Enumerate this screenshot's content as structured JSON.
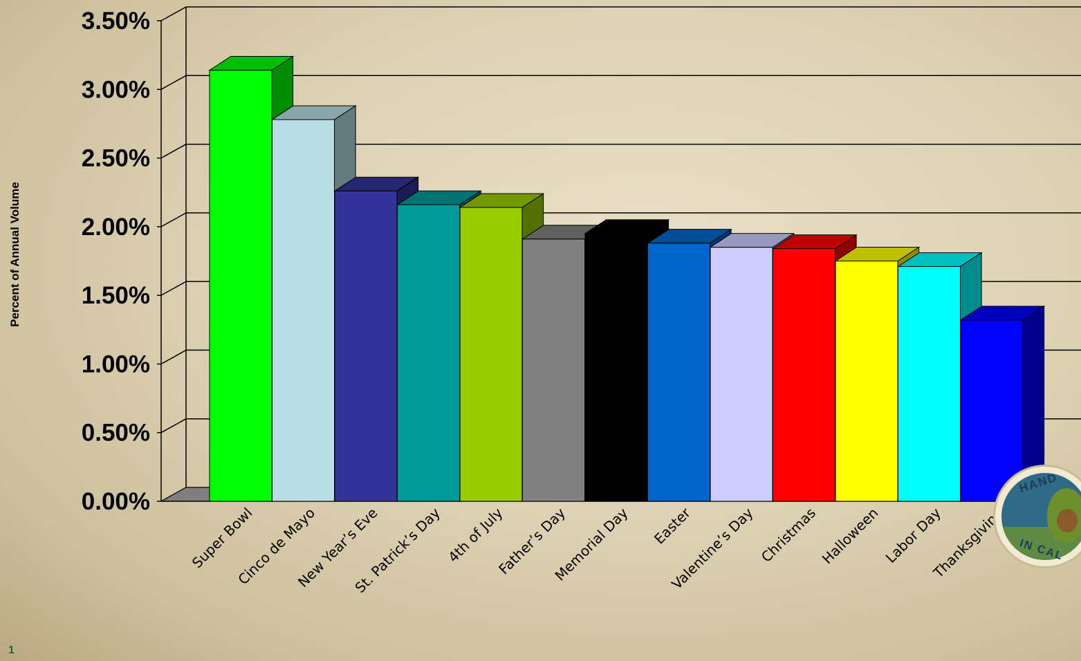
{
  "chart_data": {
    "type": "bar",
    "ylabel": "Percent of Annual Volume",
    "xlabel": "",
    "ylim": [
      0,
      3.5
    ],
    "yticks": [
      "0.00%",
      "0.50%",
      "1.00%",
      "1.50%",
      "2.00%",
      "2.50%",
      "3.00%",
      "3.50%"
    ],
    "grid": true,
    "three_d": true,
    "categories": [
      "Super Bowl",
      "Cinco de Mayo",
      "New Year’s Eve",
      "St. Patrick’s Day",
      "4th of July",
      "Father’s Day",
      "Memorial Day",
      "Easter",
      "Valentine’s Day",
      "Christmas",
      "Halloween",
      "Labor Day",
      "Thanksgiving"
    ],
    "values": [
      3.14,
      2.78,
      2.26,
      2.16,
      2.14,
      1.91,
      1.95,
      1.88,
      1.85,
      1.84,
      1.75,
      1.71,
      1.32
    ],
    "colors": [
      "#00ff00",
      "#b8dde3",
      "#333399",
      "#009999",
      "#99cc00",
      "#808080",
      "#000000",
      "#0066cc",
      "#ccccff",
      "#ff0000",
      "#ffff00",
      "#00ffff",
      "#0000ff"
    ]
  },
  "page": {
    "number": "1"
  },
  "logo": {
    "top_text": "HAND",
    "bottom_text": "IN CAL"
  }
}
